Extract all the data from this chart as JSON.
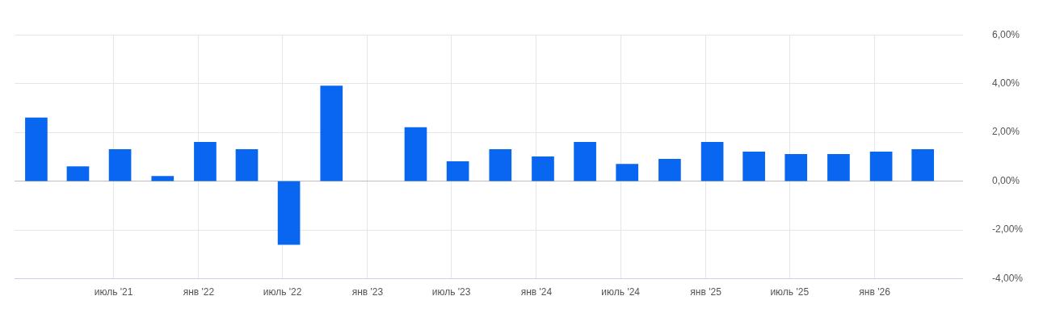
{
  "chart_data": {
    "type": "bar",
    "x": [
      "2021-01-15",
      "2021-04-15",
      "2021-07-15",
      "2021-10-15",
      "2022-01-15",
      "2022-04-15",
      "2022-07-15",
      "2022-10-15",
      "2023-01-15",
      "2023-04-15",
      "2023-07-15",
      "2023-10-15",
      "2024-01-15",
      "2024-04-15",
      "2024-07-15",
      "2024-10-15",
      "2025-01-15",
      "2025-04-15",
      "2025-07-15",
      "2025-10-15",
      "2026-01-15",
      "2026-04-15"
    ],
    "values": [
      2.6,
      0.6,
      1.3,
      0.2,
      1.6,
      1.3,
      -2.6,
      3.9,
      null,
      2.2,
      0.8,
      1.3,
      1.0,
      1.6,
      0.7,
      0.9,
      1.6,
      1.2,
      1.1,
      1.1,
      1.2,
      1.3
    ],
    "color": "#0866f0",
    "xlim": [
      "2020-11-29",
      "2026-07-11"
    ],
    "xticks": [
      {
        "value": "2021-07-01",
        "label": "июль '21"
      },
      {
        "value": "2022-01-01",
        "label": "янв '22"
      },
      {
        "value": "2022-07-01",
        "label": "июль '22"
      },
      {
        "value": "2023-01-01",
        "label": "янв '23"
      },
      {
        "value": "2023-07-01",
        "label": "июль '23"
      },
      {
        "value": "2024-01-01",
        "label": "янв '24"
      },
      {
        "value": "2024-07-01",
        "label": "июль '24"
      },
      {
        "value": "2025-01-01",
        "label": "янв '25"
      },
      {
        "value": "2025-07-01",
        "label": "июль '25"
      },
      {
        "value": "2026-01-01",
        "label": "янв '26"
      }
    ],
    "ylim": [
      -4,
      6
    ],
    "yticks": [
      {
        "value": -4,
        "label": "-4,00%"
      },
      {
        "value": -2,
        "label": "-2,00%"
      },
      {
        "value": 0,
        "label": "0,00%"
      },
      {
        "value": 2,
        "label": "2,00%"
      },
      {
        "value": 4,
        "label": "4,00%"
      },
      {
        "value": 6,
        "label": "6,00%"
      }
    ],
    "grid": true
  }
}
